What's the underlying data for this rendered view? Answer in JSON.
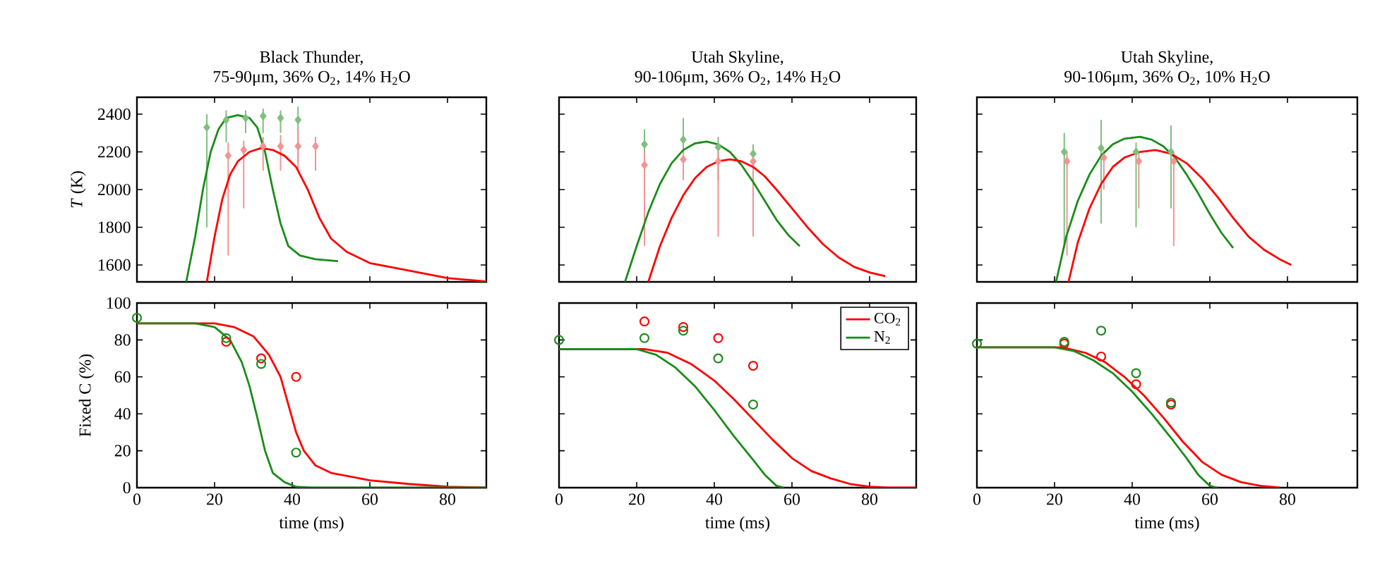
{
  "chart_data": [
    {
      "type": "line",
      "title": "Black Thunder,",
      "subtitle": "75-90μm, 36% O$_{2}$, 14% H$_{2}$O",
      "ylabel": "*T* (K)",
      "xlim": [
        0,
        90
      ],
      "ylim": [
        1510,
        2490
      ],
      "xticks": [
        0,
        20,
        40,
        60,
        80
      ],
      "yticks": [
        1600,
        1800,
        2000,
        2200,
        2400
      ],
      "tick_labels": "y",
      "series": [
        {
          "type": "scatter",
          "marker": "diamond",
          "color": "#7fbf7f",
          "x": [
            18,
            23,
            28,
            32.5,
            37,
            41.5
          ],
          "values": [
            2330,
            2370,
            2380,
            2390,
            2380,
            2370
          ],
          "errors": [
            [
              1800,
              2400
            ],
            [
              2250,
              2420
            ],
            [
              2300,
              2420
            ],
            [
              2300,
              2430
            ],
            [
              2300,
              2420
            ],
            [
              2150,
              2440
            ]
          ]
        },
        {
          "type": "scatter",
          "marker": "diamond",
          "color": "#f29494",
          "x": [
            23.5,
            27.5,
            32.5,
            37,
            41.5,
            46
          ],
          "values": [
            2180,
            2210,
            2230,
            2230,
            2230,
            2230
          ],
          "errors": [
            [
              1650,
              2250
            ],
            [
              1900,
              2260
            ],
            [
              2100,
              2280
            ],
            [
              2100,
              2290
            ],
            [
              2100,
              2320
            ],
            [
              2100,
              2280
            ]
          ]
        },
        {
          "type": "line",
          "color": "#1a8c1a",
          "x": [
            12.7,
            15,
            17,
            19,
            21,
            23,
            26,
            29,
            31,
            33,
            35,
            37,
            39,
            42,
            46,
            51.8
          ],
          "values": [
            1510,
            1750,
            2000,
            2200,
            2320,
            2380,
            2395,
            2380,
            2330,
            2200,
            2000,
            1820,
            1700,
            1650,
            1630,
            1620
          ]
        },
        {
          "type": "line",
          "color": "#ff0000",
          "x": [
            18,
            20,
            22,
            24,
            26,
            29,
            32,
            35,
            38,
            41,
            44,
            47,
            50,
            54,
            60,
            70,
            80,
            90
          ],
          "values": [
            1510,
            1750,
            1950,
            2080,
            2150,
            2200,
            2220,
            2210,
            2180,
            2120,
            2000,
            1850,
            1740,
            1670,
            1610,
            1570,
            1530,
            1512
          ]
        }
      ]
    },
    {
      "type": "line",
      "title": "Utah Skyline,",
      "subtitle": "90-106μm, 36% O$_{2}$, 14% H$_{2}$O",
      "xlim": [
        0,
        92
      ],
      "ylim": [
        1510,
        2490
      ],
      "xticks": [
        0,
        20,
        40,
        60,
        80
      ],
      "yticks": [
        1600,
        1800,
        2000,
        2200,
        2400
      ],
      "tick_labels": false,
      "series": [
        {
          "type": "scatter",
          "marker": "diamond",
          "color": "#7fbf7f",
          "x": [
            22,
            32,
            41,
            50
          ],
          "values": [
            2240,
            2265,
            2225,
            2190
          ],
          "errors": [
            [
              1950,
              2320
            ],
            [
              2100,
              2380
            ],
            [
              2050,
              2280
            ],
            [
              2000,
              2240
            ]
          ]
        },
        {
          "type": "scatter",
          "marker": "diamond",
          "color": "#f29494",
          "x": [
            22,
            32,
            41,
            50
          ],
          "values": [
            2130,
            2160,
            2150,
            2150
          ],
          "errors": [
            [
              1700,
              2200
            ],
            [
              2050,
              2220
            ],
            [
              1750,
              2200
            ],
            [
              1750,
              2200
            ]
          ]
        },
        {
          "type": "line",
          "color": "#1a8c1a",
          "x": [
            17,
            20,
            23,
            26,
            29,
            32,
            35,
            38,
            41,
            44,
            47,
            50,
            53,
            56,
            59,
            62
          ],
          "values": [
            1510,
            1700,
            1880,
            2030,
            2140,
            2210,
            2245,
            2255,
            2240,
            2200,
            2130,
            2040,
            1940,
            1840,
            1760,
            1700
          ]
        },
        {
          "type": "line",
          "color": "#ff0000",
          "x": [
            23,
            26,
            29,
            32,
            35,
            38,
            41,
            44,
            47,
            50,
            53,
            56,
            60,
            64,
            68,
            72,
            76,
            80,
            84
          ],
          "values": [
            1510,
            1700,
            1850,
            1970,
            2060,
            2120,
            2150,
            2160,
            2150,
            2120,
            2070,
            2000,
            1900,
            1800,
            1710,
            1640,
            1590,
            1560,
            1540
          ]
        }
      ]
    },
    {
      "type": "line",
      "title": "Utah Skyline,",
      "subtitle": "90-106μm, 36% O$_{2}$, 10% H$_{2}$O",
      "xlim": [
        0,
        98
      ],
      "ylim": [
        1510,
        2490
      ],
      "xticks": [
        0,
        20,
        40,
        60,
        80
      ],
      "yticks": [
        1600,
        1800,
        2000,
        2200,
        2400
      ],
      "tick_labels": false,
      "series": [
        {
          "type": "scatter",
          "marker": "diamond",
          "color": "#7fbf7f",
          "x": [
            22.5,
            32,
            41,
            50
          ],
          "values": [
            2200,
            2220,
            2200,
            2200
          ],
          "errors": [
            [
              1700,
              2300
            ],
            [
              1820,
              2370
            ],
            [
              1800,
              2250
            ],
            [
              1900,
              2340
            ]
          ]
        },
        {
          "type": "scatter",
          "marker": "diamond",
          "color": "#f29494",
          "x": [
            23.2,
            32.7,
            41.7,
            50.7
          ],
          "values": [
            2150,
            2170,
            2150,
            2150
          ],
          "errors": [
            [
              1650,
              2200
            ],
            [
              2000,
              2210
            ],
            [
              1900,
              2200
            ],
            [
              1700,
              2200
            ]
          ]
        },
        {
          "type": "line",
          "color": "#1a8c1a",
          "x": [
            20.4,
            23,
            26,
            29,
            32,
            35,
            38,
            42,
            45,
            48,
            51,
            54,
            57,
            60,
            63,
            66
          ],
          "values": [
            1510,
            1750,
            1940,
            2080,
            2180,
            2240,
            2270,
            2280,
            2265,
            2230,
            2170,
            2080,
            1980,
            1870,
            1770,
            1690
          ]
        },
        {
          "type": "line",
          "color": "#ff0000",
          "x": [
            23.6,
            26,
            29,
            32,
            35,
            38,
            42,
            46,
            50,
            54,
            58,
            62,
            66,
            70,
            74,
            78,
            81
          ],
          "values": [
            1510,
            1720,
            1900,
            2030,
            2120,
            2170,
            2200,
            2210,
            2190,
            2140,
            2060,
            1960,
            1850,
            1750,
            1680,
            1630,
            1600
          ]
        }
      ]
    },
    {
      "type": "line",
      "xlabel": "time (ms)",
      "ylabel": "Fixed C (%)",
      "xlim": [
        0,
        90
      ],
      "ylim": [
        0,
        100
      ],
      "xticks": [
        0,
        20,
        40,
        60,
        80
      ],
      "yticks": [
        0,
        20,
        40,
        60,
        80,
        100
      ],
      "series": [
        {
          "type": "line",
          "color": "#ff0000",
          "x": [
            0,
            20,
            25,
            30,
            34,
            37,
            39,
            41,
            43,
            46,
            50,
            60,
            70,
            80,
            90
          ],
          "values": [
            89,
            89,
            87,
            82,
            72,
            60,
            45,
            30,
            20,
            12,
            8,
            4,
            2,
            0.5,
            0
          ]
        },
        {
          "type": "line",
          "color": "#1a8c1a",
          "x": [
            0,
            15,
            20,
            24,
            27,
            29,
            31,
            33,
            35,
            38,
            41,
            45,
            90
          ],
          "values": [
            89,
            89,
            87,
            80,
            68,
            55,
            38,
            20,
            8,
            3,
            0.5,
            0,
            0
          ]
        },
        {
          "type": "scatter",
          "marker": "circle",
          "color": "#ff0000",
          "x": [
            23,
            32,
            41
          ],
          "values": [
            79,
            70,
            60
          ]
        },
        {
          "type": "scatter",
          "marker": "circle",
          "color": "#1a8c1a",
          "x": [
            0,
            23,
            32,
            41
          ],
          "values": [
            92,
            81,
            67,
            19
          ]
        }
      ]
    },
    {
      "type": "line",
      "xlabel": "time (ms)",
      "xlim": [
        0,
        92
      ],
      "ylim": [
        0,
        100
      ],
      "xticks": [
        0,
        20,
        40,
        60,
        80
      ],
      "yticks": [
        0,
        20,
        40,
        60,
        80,
        100
      ],
      "tick_labels": "x",
      "legend": "top right",
      "series": [
        {
          "type": "line",
          "name": "CO$_{2}$",
          "color": "#ff0000",
          "x": [
            0,
            22,
            28,
            34,
            40,
            45,
            50,
            55,
            60,
            65,
            70,
            75,
            80,
            85,
            92
          ],
          "values": [
            75,
            75,
            73,
            67,
            58,
            48,
            37,
            26,
            16,
            9,
            5,
            2,
            0.5,
            0,
            0
          ]
        },
        {
          "type": "line",
          "name": "N$_{2}$",
          "color": "#1a8c1a",
          "x": [
            0,
            20,
            25,
            30,
            35,
            40,
            45,
            50,
            53,
            56,
            58
          ],
          "values": [
            75,
            75,
            72,
            65,
            55,
            42,
            28,
            15,
            7,
            1,
            0
          ]
        },
        {
          "type": "scatter",
          "marker": "circle",
          "color": "#ff0000",
          "x": [
            22,
            32,
            41,
            50
          ],
          "values": [
            90,
            87,
            81,
            66
          ]
        },
        {
          "type": "scatter",
          "marker": "circle",
          "color": "#1a8c1a",
          "x": [
            0,
            22,
            32,
            41,
            50
          ],
          "values": [
            80,
            81,
            85,
            70,
            45
          ]
        }
      ]
    },
    {
      "type": "line",
      "xlabel": "time (ms)",
      "xlim": [
        0,
        98
      ],
      "ylim": [
        0,
        100
      ],
      "xticks": [
        0,
        20,
        40,
        60,
        80
      ],
      "yticks": [
        0,
        20,
        40,
        60,
        80,
        100
      ],
      "tick_labels": "x",
      "series": [
        {
          "type": "line",
          "color": "#ff0000",
          "x": [
            0,
            22,
            28,
            33,
            38,
            43,
            48,
            53,
            58,
            63,
            68,
            73,
            78
          ],
          "values": [
            76,
            76,
            73,
            68,
            60,
            50,
            38,
            25,
            14,
            7,
            3,
            1,
            0
          ]
        },
        {
          "type": "line",
          "color": "#1a8c1a",
          "x": [
            0,
            20,
            25,
            30,
            35,
            40,
            45,
            50,
            54,
            57,
            60,
            62
          ],
          "values": [
            76,
            76,
            74,
            69,
            62,
            52,
            40,
            27,
            16,
            7,
            1,
            0
          ]
        },
        {
          "type": "scatter",
          "marker": "circle",
          "color": "#ff0000",
          "x": [
            22.5,
            32,
            41,
            50
          ],
          "values": [
            78,
            71,
            56,
            45
          ]
        },
        {
          "type": "scatter",
          "marker": "circle",
          "color": "#1a8c1a",
          "x": [
            0,
            22.5,
            32,
            41,
            50
          ],
          "values": [
            78,
            79,
            85,
            62,
            46
          ]
        }
      ]
    }
  ]
}
